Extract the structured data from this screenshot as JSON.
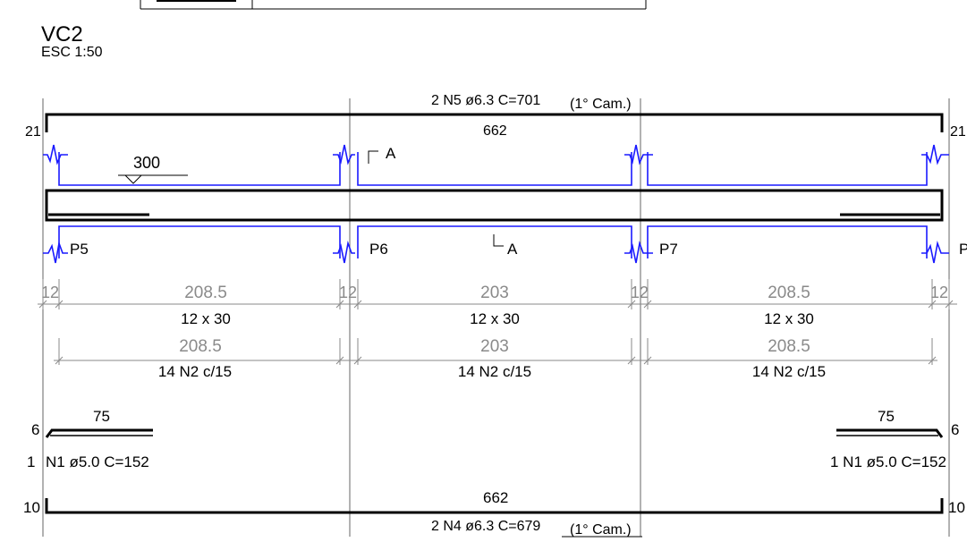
{
  "title": "VC2",
  "scale": "ESC 1:50",
  "top_bar": {
    "label_main": "2 N5 ø6.3  C=701",
    "label_extra": "(1° Cam.)",
    "length": "662",
    "hook_left": "21",
    "hook_right": "21"
  },
  "section_marks": {
    "top": "A",
    "bottom": "A"
  },
  "stirrup_spacing_marker": "300",
  "pillars": [
    "P5",
    "P6",
    "P7",
    "P"
  ],
  "dim_row_1": {
    "ends": [
      "12",
      "12",
      "12",
      "12",
      "12",
      "12"
    ],
    "spans": [
      "208.5",
      "203",
      "208.5"
    ]
  },
  "stirrup_sizes": [
    "12 x 30",
    "12 x 30",
    "12 x 30"
  ],
  "dim_row_2": {
    "spans": [
      "208.5",
      "203",
      "208.5"
    ]
  },
  "stirrup_labels": [
    "14 N2 c/15",
    "14 N2 c/15",
    "14 N2 c/15"
  ],
  "anchor_left": {
    "length": "75",
    "hook": "6",
    "count": "1",
    "label": "N1 ø5.0  C=152"
  },
  "anchor_right": {
    "length": "75",
    "hook": "6",
    "label": "1 N1 ø5.0  C=152"
  },
  "bottom_bar": {
    "label_main": "2 N4 ø6.3  C=679",
    "label_extra": "(1° Cam.)",
    "length": "662",
    "hook_left": "10",
    "hook_right": "10"
  },
  "colors": {
    "line": "#000000",
    "stirrup": "#1a1aff",
    "dimension": "#8a8a8a",
    "grid": "#666666"
  }
}
